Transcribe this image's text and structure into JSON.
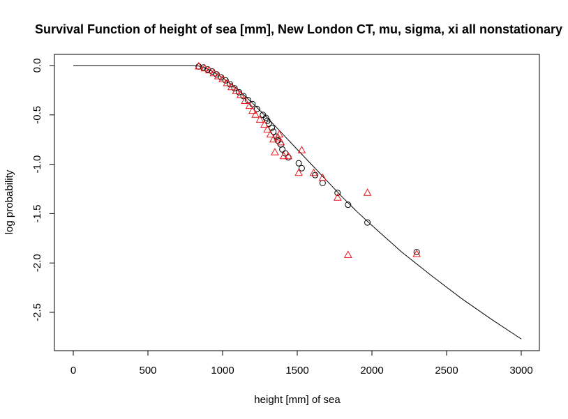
{
  "chart_data": {
    "type": "scatter",
    "title": "Survival Function of height of sea [mm], New London CT, mu, sigma, xi all nonstationary",
    "xlabel": "height [mm] of sea",
    "ylabel": "log probability",
    "xlim": [
      0,
      3000
    ],
    "ylim": [
      -2.8,
      0.1
    ],
    "x_ticks": [
      0,
      500,
      1000,
      1500,
      2000,
      2500,
      3000
    ],
    "x_tick_labels": [
      "0",
      "500",
      "1000",
      "1500",
      "2000",
      "2500",
      "3000"
    ],
    "y_ticks": [
      0.0,
      -0.5,
      -1.0,
      -1.5,
      -2.0,
      -2.5
    ],
    "y_tick_labels": [
      "0.0",
      "-0.5",
      "-1.0",
      "-1.5",
      "-2.0",
      "-2.5"
    ],
    "grid": false,
    "legend": "none",
    "colors": {
      "circles": "#000000",
      "triangles": "#e8141c",
      "curve": "#000000"
    },
    "series": [
      {
        "kind": "line",
        "x": [
          0,
          800,
          840,
          880,
          920,
          960,
          1000,
          1050,
          1100,
          1150,
          1200,
          1300,
          1400,
          1500,
          1600,
          1700,
          1800,
          1900,
          2000,
          2200,
          2400,
          2600,
          2800,
          3000
        ],
        "y": [
          0,
          0,
          -0.005,
          -0.02,
          -0.05,
          -0.085,
          -0.125,
          -0.18,
          -0.24,
          -0.31,
          -0.38,
          -0.53,
          -0.69,
          -0.85,
          -1.01,
          -1.17,
          -1.33,
          -1.48,
          -1.62,
          -1.89,
          -2.13,
          -2.36,
          -2.57,
          -2.77
        ]
      },
      {
        "kind": "points-circle",
        "x": [
          840,
          870,
          900,
          930,
          960,
          990,
          1020,
          1050,
          1080,
          1110,
          1140,
          1170,
          1200,
          1230,
          1270,
          1290,
          1300,
          1310,
          1330,
          1340,
          1360,
          1370,
          1390,
          1400,
          1420,
          1440,
          1510,
          1530,
          1620,
          1670,
          1770,
          1840,
          1970,
          2300
        ],
        "y": [
          -0.01,
          -0.02,
          -0.04,
          -0.06,
          -0.09,
          -0.12,
          -0.15,
          -0.19,
          -0.23,
          -0.27,
          -0.31,
          -0.35,
          -0.39,
          -0.44,
          -0.5,
          -0.53,
          -0.56,
          -0.59,
          -0.63,
          -0.67,
          -0.72,
          -0.76,
          -0.8,
          -0.85,
          -0.89,
          -0.93,
          -0.99,
          -1.04,
          -1.11,
          -1.19,
          -1.29,
          -1.41,
          -1.59,
          -1.89
        ]
      },
      {
        "kind": "points-triangle",
        "x": [
          840,
          880,
          910,
          940,
          970,
          1000,
          1030,
          1060,
          1090,
          1120,
          1150,
          1180,
          1200,
          1220,
          1250,
          1280,
          1300,
          1320,
          1340,
          1350,
          1370,
          1380,
          1390,
          1410,
          1440,
          1510,
          1530,
          1610,
          1670,
          1770,
          1840,
          1970,
          2300
        ],
        "y": [
          -0.01,
          -0.03,
          -0.05,
          -0.08,
          -0.11,
          -0.14,
          -0.18,
          -0.22,
          -0.26,
          -0.3,
          -0.36,
          -0.41,
          -0.46,
          -0.5,
          -0.55,
          -0.6,
          -0.65,
          -0.7,
          -0.75,
          -0.88,
          -0.73,
          -0.7,
          -0.78,
          -0.92,
          -0.92,
          -1.09,
          -0.86,
          -1.09,
          -1.14,
          -1.34,
          -1.92,
          -1.29,
          -1.91
        ]
      }
    ]
  }
}
